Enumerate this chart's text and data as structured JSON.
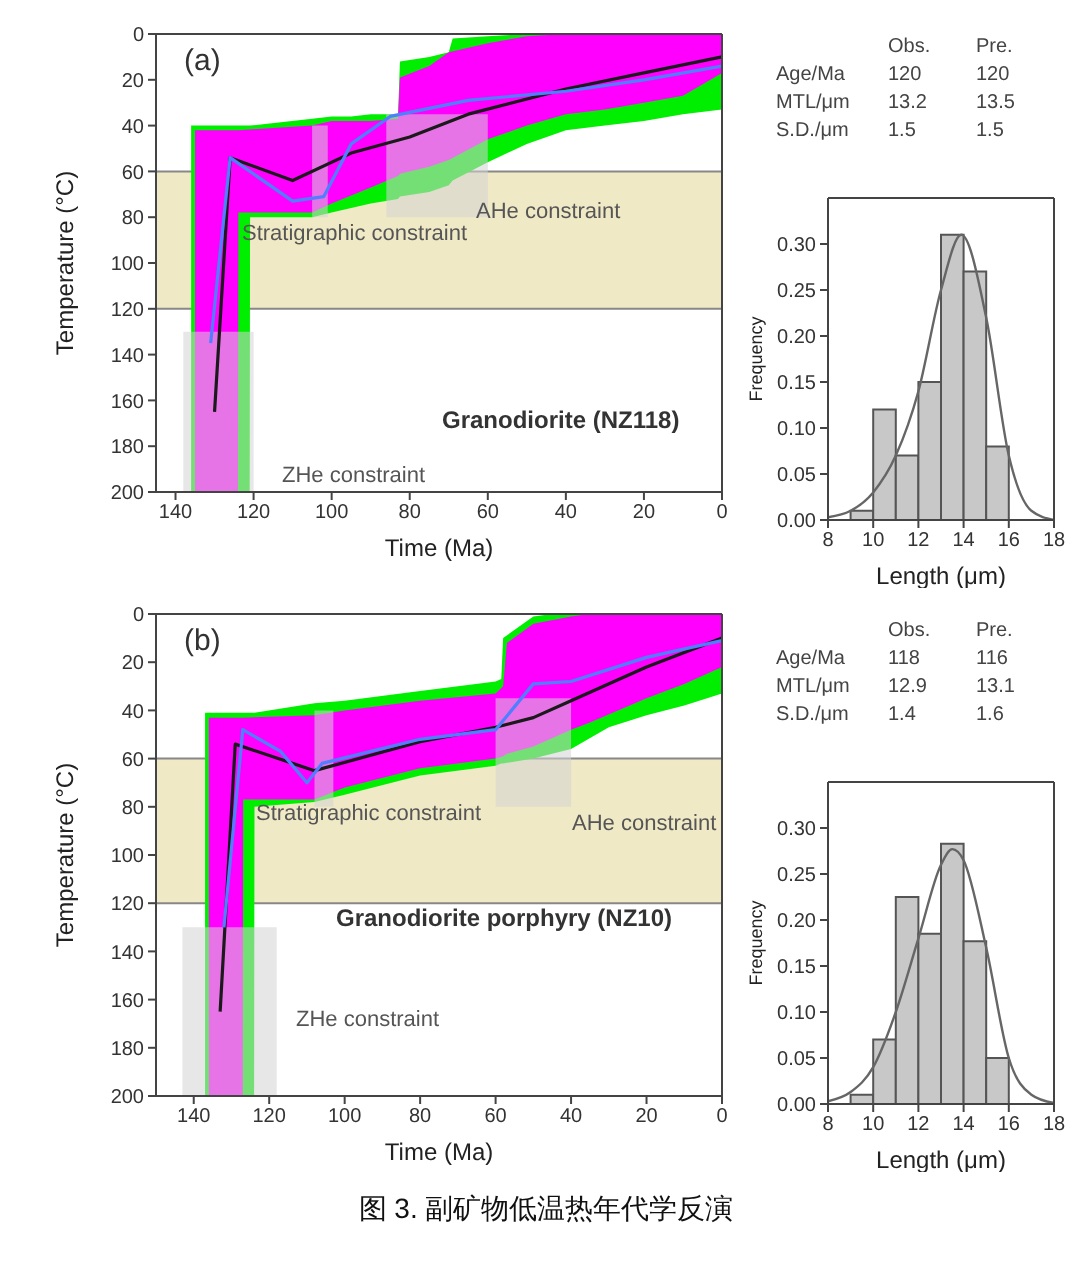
{
  "chart_data": [
    {
      "type": "line",
      "title": "(a)",
      "xlabel": "Time (Ma)",
      "ylabel": "Temperature (°C)",
      "xlim": [
        145,
        0
      ],
      "xticks": [
        140,
        120,
        100,
        80,
        60,
        40,
        20,
        0
      ],
      "ylim": [
        200,
        0
      ],
      "yticks": [
        0,
        20,
        40,
        60,
        80,
        100,
        120,
        140,
        160,
        180,
        200
      ],
      "marker": "none",
      "bands": [
        {
          "axis": "y",
          "from": 60,
          "to": 120,
          "color": "#efe9c6"
        }
      ],
      "series": [
        {
          "type": "line",
          "color": "#00ee00",
          "x": [
            136,
            121,
            120.9,
            105,
            100,
            95,
            90,
            83,
            82.5,
            75,
            70,
            69,
            60,
            50,
            40,
            30,
            20,
            10,
            0
          ],
          "values": [
            null,
            null,
            null,
            null,
            null,
            null,
            null,
            null,
            null,
            null,
            null,
            null,
            null,
            null,
            null,
            null,
            null,
            null,
            null
          ],
          "lower": [
            40,
            40,
            40,
            37,
            36,
            36,
            35,
            35,
            12,
            10,
            8,
            2,
            1,
            0,
            0,
            0,
            0,
            0,
            0
          ],
          "upper": [
            200,
            200,
            80,
            80,
            78,
            76,
            74,
            72,
            71,
            69,
            66,
            64,
            56,
            48,
            42,
            40,
            38,
            35,
            33
          ]
        },
        {
          "type": "line",
          "color": "#ff00ff",
          "x": [
            135,
            124,
            123.9,
            105,
            100,
            90,
            83,
            82.5,
            75,
            70,
            60,
            50,
            40,
            30,
            20,
            10,
            0
          ],
          "values": [
            null,
            null,
            null,
            null,
            null,
            null,
            null,
            null,
            null,
            null,
            null,
            null,
            null,
            null,
            null,
            null,
            null
          ],
          "lower": [
            42,
            42,
            42,
            40,
            38,
            38,
            37,
            19,
            14,
            8,
            4,
            1,
            0,
            0,
            0,
            0,
            0
          ],
          "upper": [
            200,
            200,
            78,
            78,
            74,
            67,
            62,
            61,
            58,
            55,
            46,
            40,
            35,
            33,
            30,
            27,
            17
          ]
        },
        {
          "type": "line",
          "color": "#1a1a1a",
          "x": [
            130,
            126,
            110,
            95,
            80,
            65,
            40,
            20,
            0
          ],
          "values": [
            165,
            54,
            64,
            52,
            45,
            35,
            24,
            17,
            10
          ]
        },
        {
          "type": "line",
          "color": "#4f7fff",
          "x": [
            131,
            126,
            110,
            102,
            95,
            85,
            65,
            40,
            20,
            0
          ],
          "values": [
            135,
            54,
            73,
            71,
            48,
            36,
            29,
            25,
            20,
            14
          ]
        },
        {
          "type": "line",
          "color": "#d4d4d4",
          "x": [
            138,
            120
          ],
          "values": [
            null,
            null
          ],
          "lower": [
            130,
            130
          ],
          "upper": [
            200,
            200
          ]
        },
        {
          "type": "line",
          "color": "#d4d4d4",
          "x": [
            105,
            101
          ],
          "values": [
            null,
            null
          ],
          "lower": [
            40,
            40
          ],
          "upper": [
            80,
            80
          ]
        },
        {
          "type": "line",
          "color": "#d4d4d4",
          "x": [
            86,
            60
          ],
          "values": [
            null,
            null
          ],
          "lower": [
            35,
            35
          ],
          "upper": [
            80,
            80
          ]
        }
      ],
      "annotations": [
        "Granodiorite (NZ118)",
        "Stratigraphic constraint",
        "AHe constraint",
        "ZHe constraint"
      ]
    },
    {
      "type": "histogram",
      "xlabel": "Length (μm)",
      "ylabel": "Frequency",
      "bins": [
        9,
        10,
        11,
        12,
        13,
        14,
        15,
        16
      ],
      "values": [
        0.01,
        0.12,
        0.07,
        0.15,
        0.31,
        0.27,
        0.08
      ],
      "color": "#c8c8c8",
      "xlim": [
        8,
        18
      ],
      "xticks": [
        8,
        10,
        12,
        14,
        16,
        18
      ],
      "ylim": [
        0,
        0.35
      ],
      "yticks": [
        {
          "value": 0,
          "label": "0.00"
        },
        {
          "value": 0.05,
          "label": "0.05"
        },
        {
          "value": 0.1,
          "label": "0.10"
        },
        {
          "value": 0.15,
          "label": "0.15"
        },
        {
          "value": 0.2,
          "label": "0.20"
        },
        {
          "value": 0.25,
          "label": "0.25"
        },
        {
          "value": 0.3,
          "label": "0.30"
        }
      ],
      "series": [
        {
          "type": "line",
          "color": "#666666",
          "x": [
            8,
            9,
            10,
            11,
            12,
            13,
            13.9,
            15,
            16,
            17,
            18
          ],
          "values": [
            0.003,
            0.01,
            0.03,
            0.07,
            0.14,
            0.25,
            0.31,
            0.22,
            0.07,
            0.01,
            0
          ]
        }
      ],
      "annotations": [
        "Obs.",
        "Pre.",
        "Age/Ma",
        "120",
        "120",
        "MTL/μm",
        "13.2",
        "13.5",
        "S.D./μm",
        "1.5",
        "1.5"
      ]
    },
    {
      "type": "line",
      "title": "(b)",
      "xlabel": "Time (Ma)",
      "ylabel": "Temperature (°C)",
      "xlim": [
        150,
        0
      ],
      "xticks": [
        140,
        120,
        100,
        80,
        60,
        40,
        20,
        0
      ],
      "ylim": [
        200,
        0
      ],
      "yticks": [
        0,
        20,
        40,
        60,
        80,
        100,
        120,
        140,
        160,
        180,
        200
      ],
      "marker": "none",
      "bands": [
        {
          "axis": "y",
          "from": 60,
          "to": 120,
          "color": "#efe9c6"
        }
      ],
      "series": [
        {
          "type": "line",
          "color": "#00ee00",
          "x": [
            137,
            124,
            123.9,
            108,
            100,
            80,
            60,
            58.5,
            58,
            50,
            45,
            40,
            30,
            20,
            10,
            0
          ],
          "values": [
            null,
            null,
            null,
            null,
            null,
            null,
            null,
            null,
            null,
            null,
            null,
            null,
            null,
            null,
            null,
            null
          ],
          "lower": [
            41,
            41,
            41,
            37,
            36,
            32,
            28,
            27,
            10,
            1,
            0,
            0,
            0,
            0,
            0,
            0
          ],
          "upper": [
            200,
            200,
            80,
            78,
            75,
            67,
            63,
            62,
            62,
            60,
            58,
            56,
            47,
            42,
            38,
            33
          ]
        },
        {
          "type": "line",
          "color": "#ff00ff",
          "x": [
            136,
            127,
            126.9,
            108,
            100,
            80,
            60,
            58,
            57,
            50,
            40,
            35,
            20,
            10,
            0
          ],
          "values": [
            null,
            null,
            null,
            null,
            null,
            null,
            null,
            null,
            null,
            null,
            null,
            null,
            null,
            null,
            null
          ],
          "lower": [
            43,
            43,
            43,
            42,
            40,
            36,
            33,
            30,
            12,
            4,
            1,
            0,
            0,
            0,
            0
          ],
          "upper": [
            200,
            200,
            77,
            77,
            72,
            64,
            60,
            59,
            58,
            55,
            48,
            45,
            35,
            29,
            22
          ]
        },
        {
          "type": "line",
          "color": "#1a1a1a",
          "x": [
            133,
            129,
            108,
            80,
            60,
            50,
            40,
            20,
            0
          ],
          "values": [
            165,
            54,
            65,
            53,
            47,
            43,
            36,
            22,
            10
          ]
        },
        {
          "type": "line",
          "color": "#4f7fff",
          "x": [
            132,
            127,
            117,
            110,
            106,
            80,
            60,
            50,
            40,
            20,
            0
          ],
          "values": [
            130,
            48,
            57,
            70,
            62,
            52,
            48,
            29,
            28,
            18,
            11
          ]
        },
        {
          "type": "line",
          "color": "#d4d4d4",
          "x": [
            143,
            118
          ],
          "values": [
            null,
            null
          ],
          "lower": [
            130,
            130
          ],
          "upper": [
            200,
            200
          ]
        },
        {
          "type": "line",
          "color": "#d4d4d4",
          "x": [
            108,
            103
          ],
          "values": [
            null,
            null
          ],
          "lower": [
            40,
            40
          ],
          "upper": [
            80,
            80
          ]
        },
        {
          "type": "line",
          "color": "#d4d4d4",
          "x": [
            60,
            40
          ],
          "values": [
            null,
            null
          ],
          "lower": [
            35,
            35
          ],
          "upper": [
            80,
            80
          ]
        }
      ],
      "annotations": [
        "Granodiorite porphyry (NZ10)",
        "Stratigraphic constraint",
        "AHe constraint",
        "ZHe constraint"
      ]
    },
    {
      "type": "histogram",
      "xlabel": "Length (μm)",
      "ylabel": "Frequency",
      "bins": [
        9,
        10,
        11,
        12,
        13,
        14,
        15,
        16
      ],
      "values": [
        0.01,
        0.07,
        0.225,
        0.185,
        0.283,
        0.177,
        0.05
      ],
      "color": "#c8c8c8",
      "xlim": [
        8,
        18
      ],
      "xticks": [
        8,
        10,
        12,
        14,
        16,
        18
      ],
      "ylim": [
        0,
        0.35
      ],
      "yticks": [
        {
          "value": 0,
          "label": "0.00"
        },
        {
          "value": 0.05,
          "label": "0.05"
        },
        {
          "value": 0.1,
          "label": "0.10"
        },
        {
          "value": 0.15,
          "label": "0.15"
        },
        {
          "value": 0.2,
          "label": "0.20"
        },
        {
          "value": 0.25,
          "label": "0.25"
        },
        {
          "value": 0.3,
          "label": "0.30"
        }
      ],
      "series": [
        {
          "type": "line",
          "color": "#666666",
          "x": [
            8,
            9,
            10,
            11,
            12,
            13,
            13.5,
            14,
            15,
            16,
            17,
            18
          ],
          "values": [
            0.003,
            0.013,
            0.04,
            0.1,
            0.18,
            0.26,
            0.277,
            0.265,
            0.17,
            0.05,
            0.01,
            0.001
          ]
        }
      ],
      "annotations": [
        "Obs.",
        "Pre.",
        "Age/Ma",
        "118",
        "116",
        "MTL/μm",
        "12.9",
        "13.1",
        "S.D./μm",
        "1.4",
        "1.6",
        "图 3.  副矿物低温热年代学反演"
      ]
    }
  ]
}
